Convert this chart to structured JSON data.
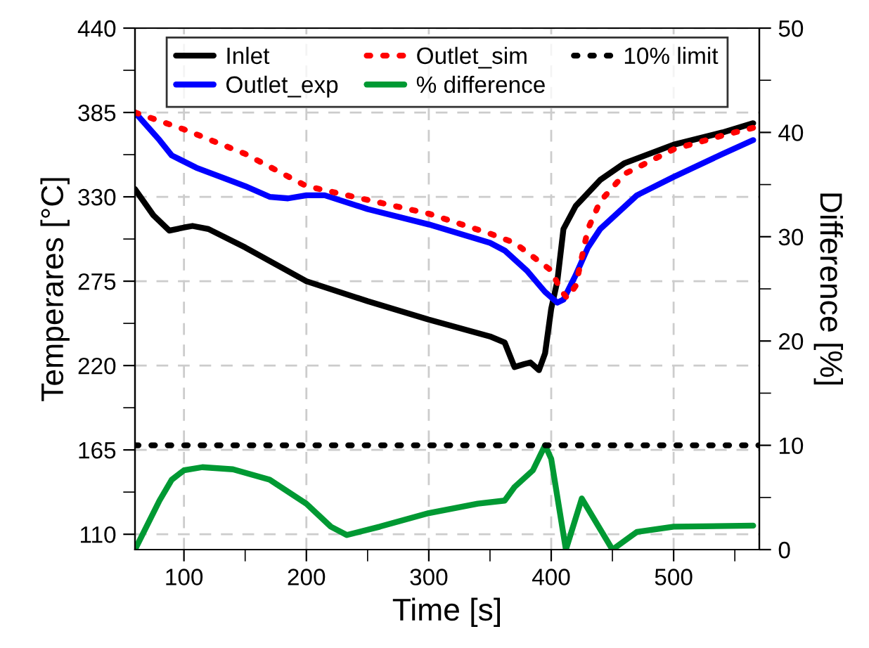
{
  "chart_data": {
    "type": "line",
    "xlabel": "Time [s]",
    "ylabel": "Temperares [°C]",
    "y2label": "Difference [%]",
    "xlim": [
      60,
      570
    ],
    "xticks": [
      100,
      {
        "value": 150,
        "label": null
      },
      200,
      {
        "value": 250,
        "label": null
      },
      300,
      {
        "value": 350,
        "label": null
      },
      400,
      {
        "value": 450,
        "label": null
      },
      500,
      {
        "value": 550,
        "label": null
      }
    ],
    "ylim": [
      100,
      440
    ],
    "yticks": [
      110,
      {
        "value": 137.5,
        "label": null
      },
      165,
      {
        "value": 192.5,
        "label": null
      },
      220,
      {
        "value": 247.5,
        "label": null
      },
      275,
      {
        "value": 302.5,
        "label": null
      },
      330,
      {
        "value": 357.5,
        "label": null
      },
      385,
      {
        "value": 412.5,
        "label": null
      },
      440
    ],
    "y2lim": [
      0,
      50
    ],
    "y2ticks": [
      0,
      {
        "value": 5,
        "label": null
      },
      10,
      {
        "value": 15,
        "label": null
      },
      20,
      {
        "value": 25,
        "label": null
      },
      30,
      {
        "value": 35,
        "label": null
      },
      40,
      {
        "value": 45,
        "label": null
      },
      50
    ],
    "grid": true,
    "legend": "top",
    "line_style": "solid",
    "series": [
      {
        "name": "Inlet",
        "color": "#000000",
        "x": [
          60,
          75,
          88,
          100,
          107,
          120,
          150,
          200,
          250,
          300,
          350,
          362,
          370,
          378,
          383,
          390,
          395,
          400,
          405,
          410,
          420,
          440,
          460,
          500,
          540,
          565
        ],
        "values": [
          335,
          318,
          308,
          310,
          311,
          309,
          297,
          275,
          262,
          250,
          239,
          235,
          219,
          221,
          222,
          217,
          228,
          257,
          275,
          309,
          324,
          341,
          352,
          364,
          372,
          378
        ]
      },
      {
        "name": "Outlet_exp",
        "color": "#0000ff",
        "x": [
          60,
          80,
          90,
          110,
          150,
          170,
          185,
          200,
          215,
          250,
          300,
          350,
          362,
          380,
          395,
          405,
          410,
          420,
          430,
          440,
          470,
          500,
          540,
          565
        ],
        "values": [
          385,
          367,
          357,
          349,
          337,
          330,
          329,
          331,
          331,
          322,
          312,
          300,
          295,
          282,
          268,
          261,
          263,
          279,
          297,
          309,
          331,
          343,
          358,
          367
        ]
      },
      {
        "name": "Outlet_sim",
        "color": "#ff0000",
        "line_style": "dotted",
        "x": [
          60,
          100,
          150,
          200,
          250,
          300,
          350,
          370,
          390,
          400,
          408,
          413,
          420,
          430,
          440,
          460,
          500,
          540,
          565
        ],
        "values": [
          385,
          374,
          358,
          337,
          328,
          319,
          306,
          300,
          288,
          282,
          269,
          264,
          272,
          309,
          327,
          345,
          361,
          370,
          375
        ]
      },
      {
        "name": "% difference",
        "color": "#009933",
        "axis": "y2",
        "x": [
          60,
          80,
          90,
          100,
          115,
          140,
          170,
          200,
          220,
          233,
          260,
          300,
          340,
          362,
          370,
          385,
          395,
          400,
          412,
          425,
          450,
          470,
          500,
          565
        ],
        "values": [
          0,
          4.7,
          6.7,
          7.6,
          7.9,
          7.7,
          6.7,
          4.4,
          2.2,
          1.4,
          2.2,
          3.5,
          4.4,
          4.7,
          6.0,
          7.6,
          10,
          8.7,
          0,
          4.9,
          0,
          1.7,
          2.2,
          2.3
        ]
      },
      {
        "name": "10% limit",
        "color": "#000000",
        "axis": "y2",
        "line_style": "dotted",
        "x": [
          60,
          570
        ],
        "values": [
          10,
          10
        ]
      }
    ]
  }
}
